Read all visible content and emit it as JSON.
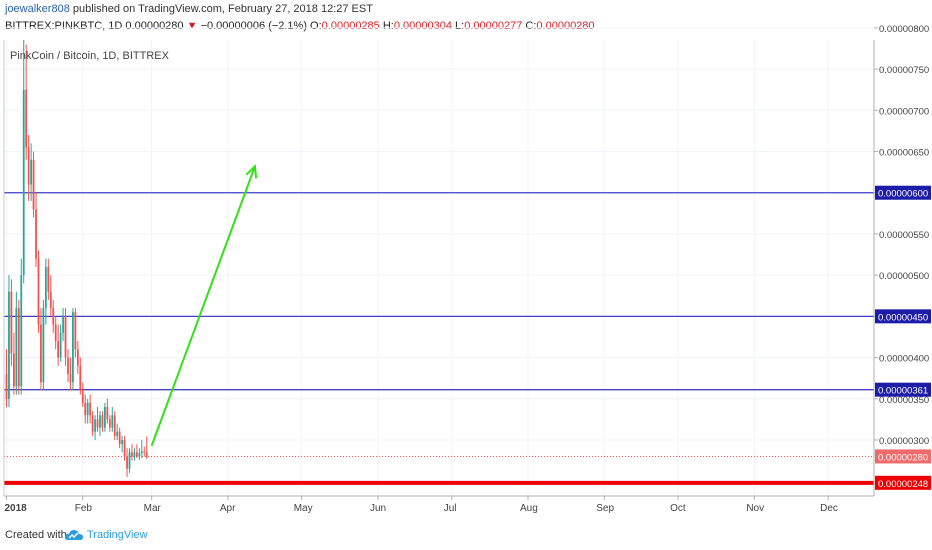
{
  "header": {
    "user": "joewalker808",
    "published_text": "published on TradingView.com, February 27, 2018 12:27 EST",
    "symbol": "BITTREX:PINKBTC, 1D",
    "last": "0.00000280",
    "change": "−0.00000006 (−2.1%)",
    "ohlc": [
      {
        "label": "O:",
        "value": "0.00000285"
      },
      {
        "label": "H:",
        "value": "0.00000304"
      },
      {
        "label": "L:",
        "value": "0.00000277"
      },
      {
        "label": "C:",
        "value": "0.00000280"
      }
    ]
  },
  "chart_title": "PinkCoin / Bitcoin, 1D, BITTREX",
  "footer": {
    "created": "Created with",
    "brand": "TradingView"
  },
  "colors": {
    "up": "#26a69a",
    "down": "#ef5350",
    "hline": "#3f3fc8",
    "support": "#ee0000",
    "arrow": "#33e01a",
    "last_price": "#ef5350"
  },
  "chart_data": {
    "type": "candlestick",
    "title": "PinkCoin / Bitcoin, 1D, BITTREX",
    "y_ticks": [
      "0.00000800",
      "0.00000750",
      "0.00000700",
      "0.00000650",
      "0.00000600",
      "0.00000550",
      "0.00000500",
      "0.00000450",
      "0.00000400",
      "0.00000350",
      "0.00000300"
    ],
    "ylim": [
      2.32e-06,
      8.12e-06
    ],
    "x_ticks": [
      "2018",
      "Feb",
      "Mar",
      "Apr",
      "May",
      "Jun",
      "Jul",
      "Aug",
      "Sep",
      "Oct",
      "Nov",
      "Dec"
    ],
    "date_range": [
      "2018-01-01",
      "2018-12-31"
    ],
    "candles": [
      {
        "date": "2018-01-01",
        "o": 3.8e-06,
        "h": 4.1e-06,
        "l": 3.4e-06,
        "c": 3.5e-06
      },
      {
        "date": "2018-01-02",
        "o": 3.5e-06,
        "h": 5e-06,
        "l": 3.4e-06,
        "c": 4.8e-06
      },
      {
        "date": "2018-01-03",
        "o": 4.8e-06,
        "h": 4.95e-06,
        "l": 3.9e-06,
        "c": 4.05e-06
      },
      {
        "date": "2018-01-04",
        "o": 4.05e-06,
        "h": 4.3e-06,
        "l": 3.55e-06,
        "c": 3.65e-06
      },
      {
        "date": "2018-01-05",
        "o": 3.65e-06,
        "h": 4.8e-06,
        "l": 3.55e-06,
        "c": 4.6e-06
      },
      {
        "date": "2018-01-06",
        "o": 4.6e-06,
        "h": 4.7e-06,
        "l": 3.55e-06,
        "c": 3.65e-06
      },
      {
        "date": "2018-01-07",
        "o": 3.65e-06,
        "h": 5.2e-06,
        "l": 3.55e-06,
        "c": 5e-06
      },
      {
        "date": "2018-01-08",
        "o": 5e-06,
        "h": 7.9e-06,
        "l": 4.9e-06,
        "c": 7.25e-06
      },
      {
        "date": "2018-01-09",
        "o": 7.25e-06,
        "h": 7.8e-06,
        "l": 6.4e-06,
        "c": 6.55e-06
      },
      {
        "date": "2018-01-10",
        "o": 6.55e-06,
        "h": 6.7e-06,
        "l": 5.9e-06,
        "c": 6.1e-06
      },
      {
        "date": "2018-01-11",
        "o": 6.1e-06,
        "h": 6.6e-06,
        "l": 5.9e-06,
        "c": 6.4e-06
      },
      {
        "date": "2018-01-12",
        "o": 6.4e-06,
        "h": 6.5e-06,
        "l": 5.7e-06,
        "c": 5.8e-06
      },
      {
        "date": "2018-01-13",
        "o": 5.8e-06,
        "h": 6e-06,
        "l": 5.1e-06,
        "c": 5.2e-06
      },
      {
        "date": "2018-01-14",
        "o": 5.2e-06,
        "h": 5.3e-06,
        "l": 4.3e-06,
        "c": 4.4e-06
      },
      {
        "date": "2018-01-15",
        "o": 4.4e-06,
        "h": 4.6e-06,
        "l": 3.6e-06,
        "c": 3.7e-06
      },
      {
        "date": "2018-01-16",
        "o": 3.7e-06,
        "h": 4.7e-06,
        "l": 3.6e-06,
        "c": 4.6e-06
      },
      {
        "date": "2018-01-17",
        "o": 4.6e-06,
        "h": 5.2e-06,
        "l": 4.4e-06,
        "c": 5.1e-06
      },
      {
        "date": "2018-01-18",
        "o": 5.1e-06,
        "h": 5.2e-06,
        "l": 4.7e-06,
        "c": 4.8e-06
      },
      {
        "date": "2018-01-19",
        "o": 4.8e-06,
        "h": 5e-06,
        "l": 4.5e-06,
        "c": 4.6e-06
      },
      {
        "date": "2018-01-20",
        "o": 4.6e-06,
        "h": 4.7e-06,
        "l": 4.3e-06,
        "c": 4.4e-06
      },
      {
        "date": "2018-01-21",
        "o": 4.4e-06,
        "h": 4.5e-06,
        "l": 4.1e-06,
        "c": 4.2e-06
      },
      {
        "date": "2018-01-22",
        "o": 4.2e-06,
        "h": 4.4e-06,
        "l": 3.9e-06,
        "c": 4e-06
      },
      {
        "date": "2018-01-23",
        "o": 4e-06,
        "h": 4.4e-06,
        "l": 3.95e-06,
        "c": 4.3e-06
      },
      {
        "date": "2018-01-24",
        "o": 4.3e-06,
        "h": 4.6e-06,
        "l": 4.2e-06,
        "c": 4.5e-06
      },
      {
        "date": "2018-01-25",
        "o": 4.5e-06,
        "h": 4.6e-06,
        "l": 3.9e-06,
        "c": 4e-06
      },
      {
        "date": "2018-01-26",
        "o": 4e-06,
        "h": 4.1e-06,
        "l": 3.7e-06,
        "c": 3.8e-06
      },
      {
        "date": "2018-01-27",
        "o": 3.8e-06,
        "h": 4e-06,
        "l": 3.6e-06,
        "c": 3.7e-06
      },
      {
        "date": "2018-01-28",
        "o": 3.7e-06,
        "h": 4.6e-06,
        "l": 3.6e-06,
        "c": 4.55e-06
      },
      {
        "date": "2018-01-29",
        "o": 4.55e-06,
        "h": 4.6e-06,
        "l": 4e-06,
        "c": 4.1e-06
      },
      {
        "date": "2018-01-30",
        "o": 4.1e-06,
        "h": 4.2e-06,
        "l": 3.8e-06,
        "c": 3.9e-06
      },
      {
        "date": "2018-01-31",
        "o": 3.9e-06,
        "h": 4e-06,
        "l": 3.55e-06,
        "c": 3.6e-06
      },
      {
        "date": "2018-02-01",
        "o": 3.6e-06,
        "h": 3.7e-06,
        "l": 3.4e-06,
        "c": 3.45e-06
      },
      {
        "date": "2018-02-02",
        "o": 3.45e-06,
        "h": 3.55e-06,
        "l": 3.2e-06,
        "c": 3.3e-06
      },
      {
        "date": "2018-02-03",
        "o": 3.3e-06,
        "h": 3.5e-06,
        "l": 3.2e-06,
        "c": 3.45e-06
      },
      {
        "date": "2018-02-04",
        "o": 3.45e-06,
        "h": 3.55e-06,
        "l": 3.2e-06,
        "c": 3.3e-06
      },
      {
        "date": "2018-02-05",
        "o": 3.3e-06,
        "h": 3.35e-06,
        "l": 3.05e-06,
        "c": 3.1e-06
      },
      {
        "date": "2018-02-06",
        "o": 3.1e-06,
        "h": 3.3e-06,
        "l": 3e-06,
        "c": 3.25e-06
      },
      {
        "date": "2018-02-07",
        "o": 3.25e-06,
        "h": 3.4e-06,
        "l": 3.1e-06,
        "c": 3.15e-06
      },
      {
        "date": "2018-02-08",
        "o": 3.15e-06,
        "h": 3.35e-06,
        "l": 3.05e-06,
        "c": 3.3e-06
      },
      {
        "date": "2018-02-09",
        "o": 3.3e-06,
        "h": 3.35e-06,
        "l": 3.1e-06,
        "c": 3.15e-06
      },
      {
        "date": "2018-02-10",
        "o": 3.15e-06,
        "h": 3.45e-06,
        "l": 3.1e-06,
        "c": 3.4e-06
      },
      {
        "date": "2018-02-11",
        "o": 3.4e-06,
        "h": 3.5e-06,
        "l": 3.2e-06,
        "c": 3.25e-06
      },
      {
        "date": "2018-02-12",
        "o": 3.25e-06,
        "h": 3.3e-06,
        "l": 3.1e-06,
        "c": 3.15e-06
      },
      {
        "date": "2018-02-13",
        "o": 3.15e-06,
        "h": 3.4e-06,
        "l": 3.1e-06,
        "c": 3.3e-06
      },
      {
        "date": "2018-02-14",
        "o": 3.3e-06,
        "h": 3.35e-06,
        "l": 3e-06,
        "c": 3.05e-06
      },
      {
        "date": "2018-02-15",
        "o": 3.05e-06,
        "h": 3.2e-06,
        "l": 3e-06,
        "c": 3.1e-06
      },
      {
        "date": "2018-02-16",
        "o": 3.1e-06,
        "h": 3.15e-06,
        "l": 2.9e-06,
        "c": 2.95e-06
      },
      {
        "date": "2018-02-17",
        "o": 2.95e-06,
        "h": 3.05e-06,
        "l": 2.85e-06,
        "c": 3e-06
      },
      {
        "date": "2018-02-18",
        "o": 3e-06,
        "h": 3.05e-06,
        "l": 2.75e-06,
        "c": 2.8e-06
      },
      {
        "date": "2018-02-19",
        "o": 2.8e-06,
        "h": 2.9e-06,
        "l": 2.55e-06,
        "c": 2.65e-06
      },
      {
        "date": "2018-02-20",
        "o": 2.65e-06,
        "h": 2.9e-06,
        "l": 2.6e-06,
        "c": 2.85e-06
      },
      {
        "date": "2018-02-21",
        "o": 2.85e-06,
        "h": 2.95e-06,
        "l": 2.75e-06,
        "c": 2.8e-06
      },
      {
        "date": "2018-02-22",
        "o": 2.8e-06,
        "h": 2.9e-06,
        "l": 2.75e-06,
        "c": 2.85e-06
      },
      {
        "date": "2018-02-23",
        "o": 2.85e-06,
        "h": 2.95e-06,
        "l": 2.78e-06,
        "c": 2.8e-06
      },
      {
        "date": "2018-02-24",
        "o": 2.8e-06,
        "h": 2.9e-06,
        "l": 2.76e-06,
        "c": 2.84e-06
      },
      {
        "date": "2018-02-25",
        "o": 2.84e-06,
        "h": 3e-06,
        "l": 2.78e-06,
        "c": 2.86e-06
      },
      {
        "date": "2018-02-26",
        "o": 2.86e-06,
        "h": 2.92e-06,
        "l": 2.8e-06,
        "c": 2.85e-06
      },
      {
        "date": "2018-02-27",
        "o": 2.85e-06,
        "h": 3.04e-06,
        "l": 2.77e-06,
        "c": 2.8e-06
      }
    ],
    "horizontal_lines": [
      {
        "value": 6e-06,
        "label": "0.00000600",
        "color": "#3f3fc8",
        "width": 1.3
      },
      {
        "value": 4.5e-06,
        "label": "0.00000450",
        "color": "#3f3fc8",
        "width": 1.3
      },
      {
        "value": 3.61e-06,
        "label": "0.00000361",
        "color": "#3f3fc8",
        "width": 1.3
      },
      {
        "value": 2.48e-06,
        "label": "0.00000248",
        "color": "#ee0000",
        "width": 4
      }
    ],
    "last_price": {
      "value": 2.8e-06,
      "label": "0.00000280"
    },
    "arrow": {
      "from": {
        "date": "2018-03-01",
        "value": 2.93e-06
      },
      "to": {
        "date": "2018-04-12",
        "value": 6.32e-06
      }
    }
  }
}
